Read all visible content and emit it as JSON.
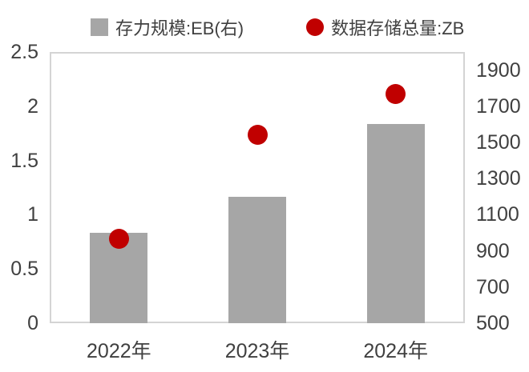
{
  "page": {
    "background": "#ffffff",
    "text_color": "#404040",
    "plot_border_color": "#d4d4d4"
  },
  "legend": {
    "position": "top",
    "items": [
      {
        "label": "存力规模:EB(右)",
        "marker": "square",
        "color": "#a6a6a6"
      },
      {
        "label": "数据存储总量:ZB",
        "marker": "circle",
        "color": "#c00000"
      }
    ]
  },
  "chart_data": {
    "type": "combo",
    "title": "",
    "grid": false,
    "legend_position": "top",
    "categories": [
      "2022年",
      "2023年",
      "2024年"
    ],
    "series": [
      {
        "name": "存力规模:EB(右)",
        "type": "bar",
        "axis": "right",
        "unit": "EB",
        "color": "#a6a6a6",
        "values": [
          1000,
          1200,
          1600
        ]
      },
      {
        "name": "数据存储总量:ZB",
        "type": "scatter",
        "axis": "left",
        "unit": "ZB",
        "color": "#c00000",
        "values": [
          0.78,
          1.74,
          2.11
        ]
      }
    ],
    "left_axis": {
      "min": 0,
      "max": 2.5,
      "tick_step": 0.5,
      "tick_labels": [
        "0",
        "0.5",
        "1",
        "1.5",
        "2",
        "2.5"
      ]
    },
    "right_axis": {
      "min": 500,
      "max": 2000,
      "tick_step": 200,
      "tick_labels": [
        "500",
        "700",
        "900",
        "1100",
        "1300",
        "1500",
        "1700",
        "1900"
      ]
    }
  }
}
